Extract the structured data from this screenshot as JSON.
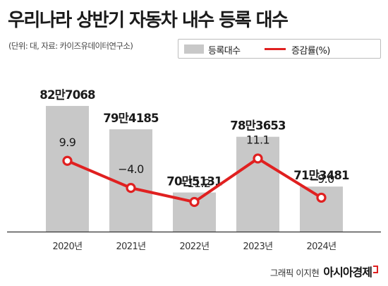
{
  "title": "우리나라 상반기 자동차 내수 등록 대수",
  "unit_note": "(단위: 대, 자료: 카이즈유데이터연구소)",
  "legend": {
    "bar_label": "등록대수",
    "line_label": "증감률(%)"
  },
  "credit": {
    "graphic_by": "그래픽 이지현",
    "brand": "아시아경제"
  },
  "colors": {
    "bar": "#c8c8c8",
    "line": "#e02020",
    "point_fill": "#ffffff",
    "baseline": "#333333"
  },
  "chart_data": {
    "type": "bar",
    "categories": [
      "2020년",
      "2021년",
      "2022년",
      "2023년",
      "2024년"
    ],
    "series": [
      {
        "name": "등록대수",
        "type": "bar",
        "values": [
          827068,
          794185,
          705131,
          783653,
          713481
        ],
        "labels": [
          "82만7068",
          "79만4185",
          "70만5131",
          "78만3653",
          "71만3481"
        ]
      },
      {
        "name": "증감률(%)",
        "type": "line",
        "values": [
          9.9,
          -4.0,
          -11.2,
          11.1,
          -9.0
        ],
        "labels": [
          "9.9",
          "−4.0",
          "−11.2",
          "11.1",
          "−9.0"
        ]
      }
    ],
    "legend_position": "top-right",
    "grid": false
  }
}
